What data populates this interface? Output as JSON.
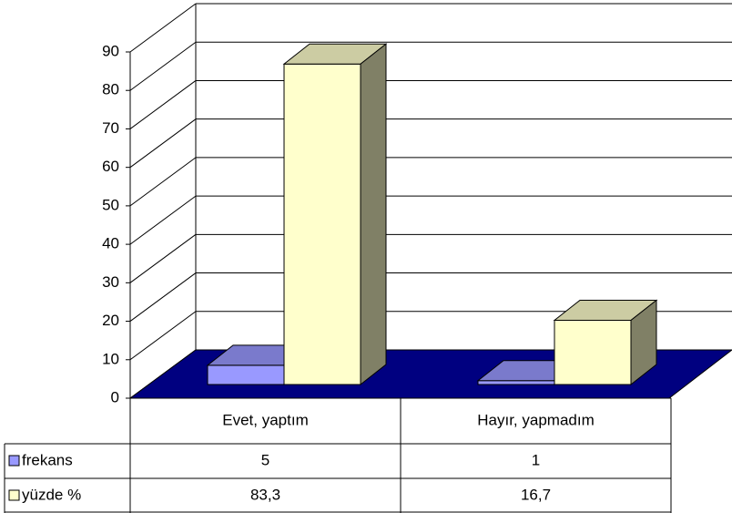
{
  "chart_data": {
    "type": "bar3d",
    "categories": [
      "Evet, yaptım",
      "Hayır, yapmadım"
    ],
    "series": [
      {
        "name": "frekans",
        "color": "#9999ff",
        "values": [
          5,
          1
        ]
      },
      {
        "name": "yüzde %",
        "color": "#ffffcc",
        "values": [
          83.3,
          16.7
        ],
        "value_labels": [
          "83,3",
          "16,7"
        ]
      }
    ],
    "ylim": [
      0,
      90
    ],
    "yticks": [
      0,
      10,
      20,
      30,
      40,
      50,
      60,
      70,
      80,
      90
    ],
    "grid": true,
    "floor_color": "#000080",
    "data_table": true
  }
}
